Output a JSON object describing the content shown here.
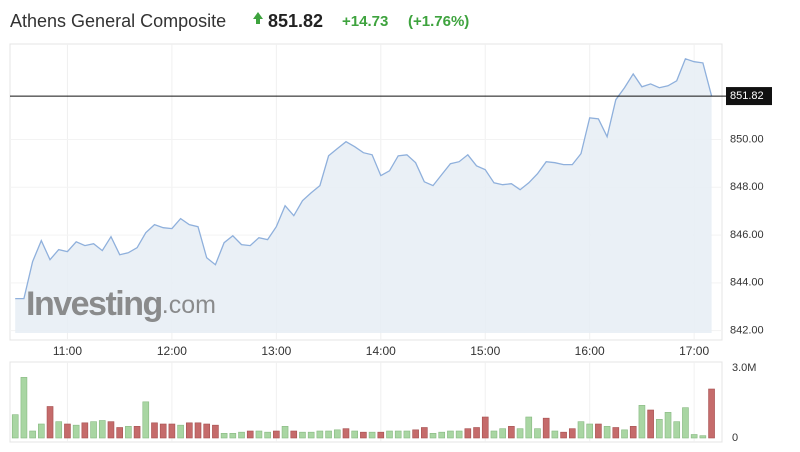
{
  "chart_data": {
    "type": "area",
    "title": "Athens General Composite",
    "last_price": 851.82,
    "change": "+14.73",
    "change_pct": "(+1.76%)",
    "watermark": {
      "brand": "Investing",
      "suffix": ".com"
    },
    "x": [
      630,
      635,
      640,
      645,
      650,
      655,
      660,
      665,
      670,
      675,
      680,
      685,
      690,
      695,
      700,
      705,
      710,
      715,
      720,
      725,
      730,
      735,
      740,
      745,
      750,
      755,
      760,
      765,
      770,
      775,
      780,
      785,
      790,
      795,
      800,
      805,
      810,
      815,
      820,
      825,
      830,
      835,
      840,
      845,
      850,
      855,
      860,
      865,
      870,
      875,
      880,
      885,
      890,
      895,
      900,
      905,
      910,
      915,
      920,
      925,
      930,
      935,
      940,
      945,
      950,
      955,
      960,
      965,
      970,
      975,
      980,
      985,
      990,
      995,
      1000,
      1005,
      1010,
      1015,
      1020,
      1025,
      1030
    ],
    "xlim": [
      627,
      1036
    ],
    "xticks": [
      {
        "value": 660,
        "label": "11:00"
      },
      {
        "value": 720,
        "label": "12:00"
      },
      {
        "value": 780,
        "label": "13:00"
      },
      {
        "value": 840,
        "label": "14:00"
      },
      {
        "value": 900,
        "label": "15:00"
      },
      {
        "value": 960,
        "label": "16:00"
      },
      {
        "value": 1020,
        "label": "17:00"
      }
    ],
    "ylim": [
      841.9,
      854
    ],
    "yticks": [
      {
        "value": 842,
        "label": "842.00"
      },
      {
        "value": 844,
        "label": "844.00"
      },
      {
        "value": 846,
        "label": "846.00"
      },
      {
        "value": 848,
        "label": "848.00"
      },
      {
        "value": 850,
        "label": "850.00"
      }
    ],
    "grid": true,
    "series": [
      {
        "color": "#8fb0dc",
        "fill": "#e6edf5",
        "values": [
          843.34,
          843.34,
          844.89,
          845.77,
          844.97,
          845.39,
          845.31,
          845.72,
          845.56,
          845.64,
          845.35,
          845.93,
          845.18,
          845.26,
          845.47,
          846.1,
          846.44,
          846.31,
          846.27,
          846.69,
          846.44,
          846.35,
          845.05,
          844.76,
          845.68,
          845.97,
          845.6,
          845.56,
          845.89,
          845.81,
          846.35,
          847.23,
          846.81,
          847.44,
          847.77,
          848.07,
          849.32,
          849.62,
          849.91,
          849.7,
          849.45,
          849.36,
          848.49,
          848.69,
          849.32,
          849.36,
          849.03,
          848.23,
          848.07,
          848.53,
          848.99,
          849.07,
          849.36,
          848.9,
          848.74,
          848.19,
          848.11,
          848.15,
          847.9,
          848.19,
          848.57,
          849.07,
          849.03,
          848.95,
          848.95,
          849.41,
          850.91,
          850.87,
          850.12,
          851.67,
          852.17,
          852.75,
          852.21,
          852.33,
          852.17,
          852.25,
          852.46,
          853.38,
          853.26,
          853.21,
          851.82
        ]
      }
    ],
    "volume": {
      "ylim": [
        0,
        3000000
      ],
      "yticks": [
        0,
        {
          "value": 3000000,
          "label": "3.0M"
        }
      ],
      "values": [
        1000000,
        2600000,
        300000,
        600000,
        1350000,
        700000,
        600000,
        550000,
        650000,
        700000,
        750000,
        700000,
        450000,
        500000,
        500000,
        1550000,
        650000,
        600000,
        600000,
        550000,
        650000,
        650000,
        600000,
        550000,
        200000,
        200000,
        250000,
        300000,
        300000,
        250000,
        300000,
        500000,
        300000,
        250000,
        250000,
        300000,
        300000,
        350000,
        400000,
        300000,
        250000,
        250000,
        250000,
        300000,
        300000,
        300000,
        350000,
        450000,
        200000,
        250000,
        300000,
        300000,
        400000,
        450000,
        900000,
        300000,
        400000,
        500000,
        400000,
        900000,
        400000,
        850000,
        300000,
        250000,
        400000,
        700000,
        600000,
        600000,
        500000,
        450000,
        350000,
        500000,
        1400000,
        1200000,
        800000,
        1100000,
        700000,
        1300000,
        150000,
        100000,
        2100000
      ],
      "colors": [
        "#a9d6a3",
        "#a9d6a3",
        "#a9d6a3",
        "#a9d6a3",
        "#c56b6b",
        "#a9d6a3",
        "#c56b6b",
        "#a9d6a3",
        "#c56b6b",
        "#a9d6a3",
        "#a9d6a3",
        "#c56b6b",
        "#c56b6b",
        "#a9d6a3",
        "#c56b6b",
        "#a9d6a3",
        "#c56b6b",
        "#c56b6b",
        "#c56b6b",
        "#a9d6a3",
        "#c56b6b",
        "#c56b6b",
        "#c56b6b",
        "#c56b6b",
        "#a9d6a3",
        "#a9d6a3",
        "#a9d6a3",
        "#c56b6b",
        "#a9d6a3",
        "#a9d6a3",
        "#c56b6b",
        "#a9d6a3",
        "#c56b6b",
        "#a9d6a3",
        "#a9d6a3",
        "#a9d6a3",
        "#a9d6a3",
        "#a9d6a3",
        "#c56b6b",
        "#a9d6a3",
        "#c56b6b",
        "#a9d6a3",
        "#c56b6b",
        "#a9d6a3",
        "#a9d6a3",
        "#a9d6a3",
        "#c56b6b",
        "#c56b6b",
        "#a9d6a3",
        "#a9d6a3",
        "#a9d6a3",
        "#a9d6a3",
        "#c56b6b",
        "#c56b6b",
        "#c56b6b",
        "#a9d6a3",
        "#a9d6a3",
        "#c56b6b",
        "#a9d6a3",
        "#a9d6a3",
        "#a9d6a3",
        "#c56b6b",
        "#a9d6a3",
        "#c56b6b",
        "#c56b6b",
        "#a9d6a3",
        "#a9d6a3",
        "#c56b6b",
        "#a9d6a3",
        "#c56b6b",
        "#a9d6a3",
        "#c56b6b",
        "#a9d6a3",
        "#c56b6b",
        "#a9d6a3",
        "#a9d6a3",
        "#a9d6a3",
        "#a9d6a3",
        "#a9d6a3",
        "#a9d6a3",
        "#c56b6b"
      ]
    }
  }
}
